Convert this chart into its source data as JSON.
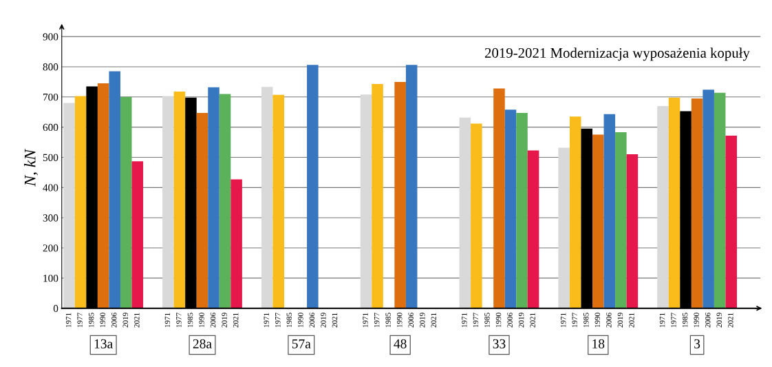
{
  "chart_data": {
    "type": "bar",
    "categories": [
      "13a",
      "28a",
      "57a",
      "48",
      "33",
      "18",
      "3"
    ],
    "series": [
      {
        "name": "1971",
        "color": "#d9d9d9",
        "values": [
          680,
          703,
          733,
          708,
          632,
          532,
          670
        ]
      },
      {
        "name": "1977",
        "color": "#f9bc1b",
        "values": [
          703,
          718,
          707,
          743,
          612,
          635,
          698
        ]
      },
      {
        "name": "1985",
        "color": "#000000",
        "values": [
          735,
          698,
          null,
          null,
          null,
          595,
          653
        ]
      },
      {
        "name": "1990",
        "color": "#de6f0f",
        "values": [
          745,
          647,
          null,
          750,
          728,
          575,
          695
        ]
      },
      {
        "name": "2006",
        "color": "#3677c0",
        "values": [
          785,
          732,
          806,
          806,
          658,
          643,
          724
        ]
      },
      {
        "name": "2019",
        "color": "#5cb25b",
        "values": [
          700,
          710,
          null,
          null,
          647,
          583,
          714
        ]
      },
      {
        "name": "2021",
        "color": "#e5174b",
        "values": [
          487,
          427,
          null,
          null,
          523,
          510,
          572
        ]
      }
    ],
    "ylabel": "N, kN",
    "ylim": [
      0,
      930
    ],
    "yticks": [
      0,
      100,
      200,
      300,
      400,
      500,
      600,
      700,
      800,
      900
    ],
    "grid": "y",
    "legend": false,
    "annotations": [
      "2019-2021 Modernizacja wyposażenia kopuły"
    ]
  }
}
